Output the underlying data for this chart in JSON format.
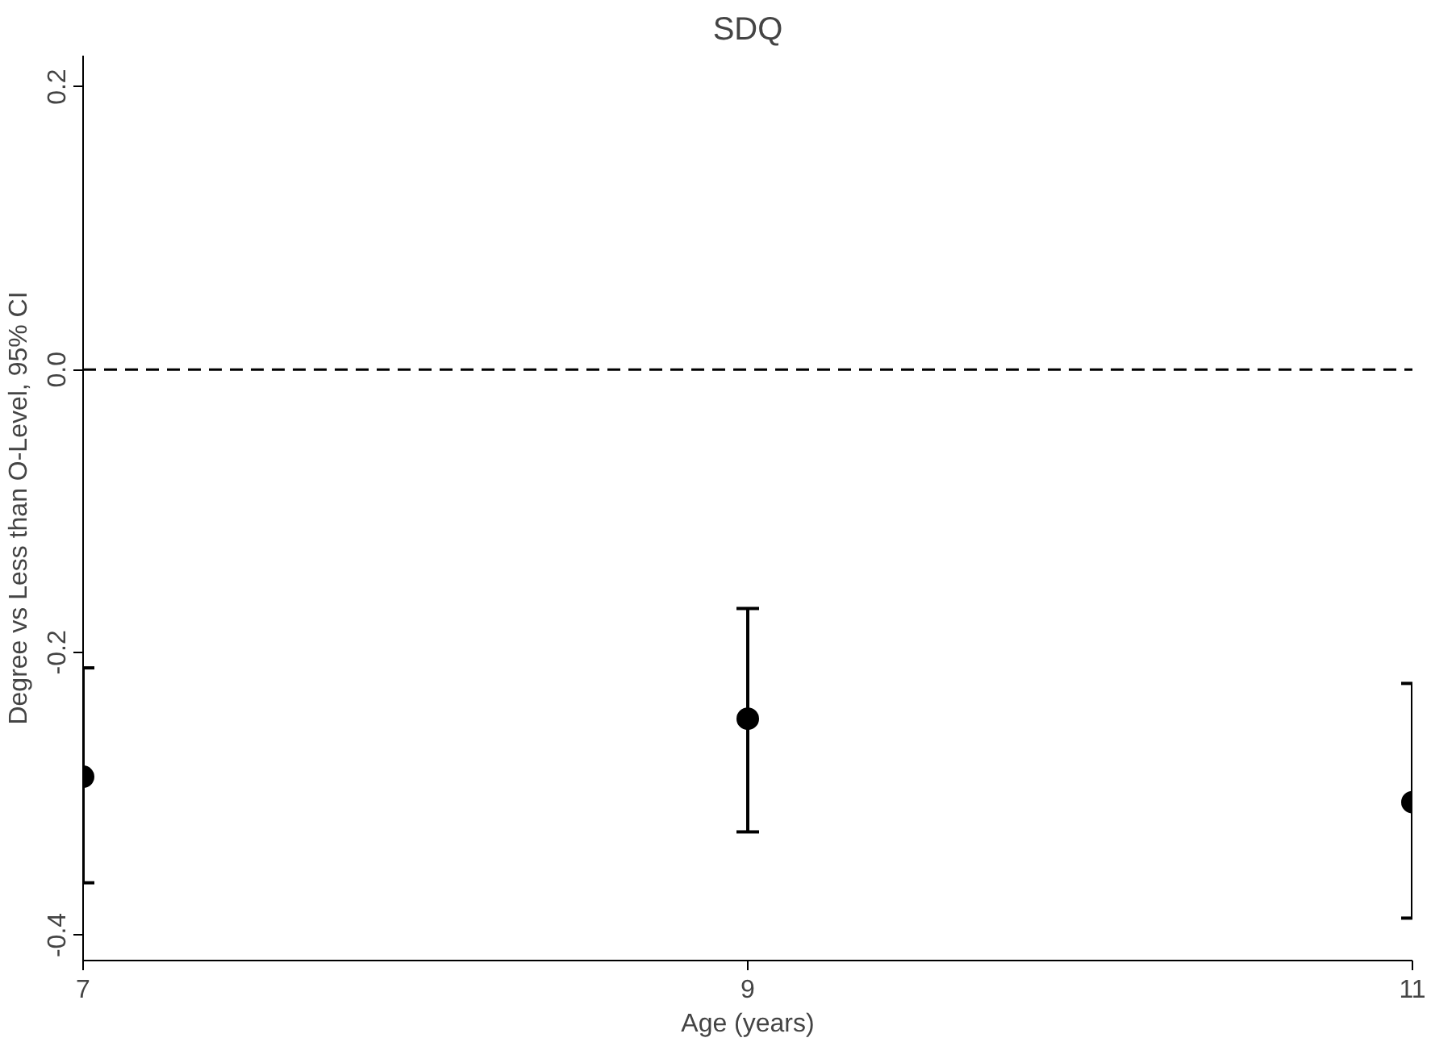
{
  "chart_data": {
    "type": "scatter",
    "title": "SDQ",
    "xlabel": "Age (years)",
    "ylabel": "Degree vs Less than O-Level, 95% CI",
    "x": [
      7,
      9,
      11
    ],
    "series": [
      {
        "color": "#000000",
        "values": [
          -0.288,
          -0.247,
          -0.306
        ],
        "errors": [
          [
            -0.363,
            -0.211
          ],
          [
            -0.327,
            -0.169
          ],
          [
            -0.388,
            -0.222
          ]
        ]
      }
    ],
    "xlim": [
      7,
      11
    ],
    "xticks": [
      7,
      9,
      11
    ],
    "ylim": [
      -0.418,
      0.222
    ],
    "yticks": [
      {
        "value": -0.4,
        "label": "-0.4"
      },
      {
        "value": -0.2,
        "label": "-0.2"
      },
      {
        "value": 0,
        "label": "0.0"
      },
      {
        "value": 0.2,
        "label": "0.2"
      }
    ],
    "ref_lines": [
      {
        "axis": "y",
        "value": 0,
        "line_style": "dashed",
        "color": "#000000"
      }
    ],
    "marker": "circle",
    "grid": false
  }
}
